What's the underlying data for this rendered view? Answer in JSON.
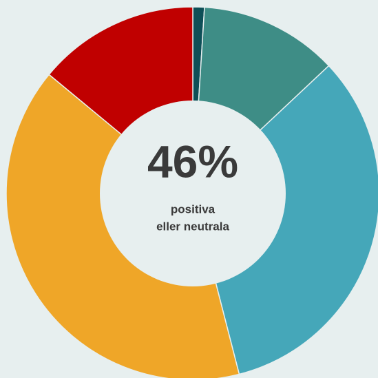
{
  "chart_data": {
    "type": "donut",
    "center_label": "46%",
    "center_text": [
      "positiva",
      "eller neutrala"
    ],
    "values": [
      1,
      12,
      33,
      40,
      14
    ],
    "colors": [
      "#0e4f57",
      "#3e8d86",
      "#45a7b9",
      "#efa628",
      "#c00000"
    ]
  }
}
